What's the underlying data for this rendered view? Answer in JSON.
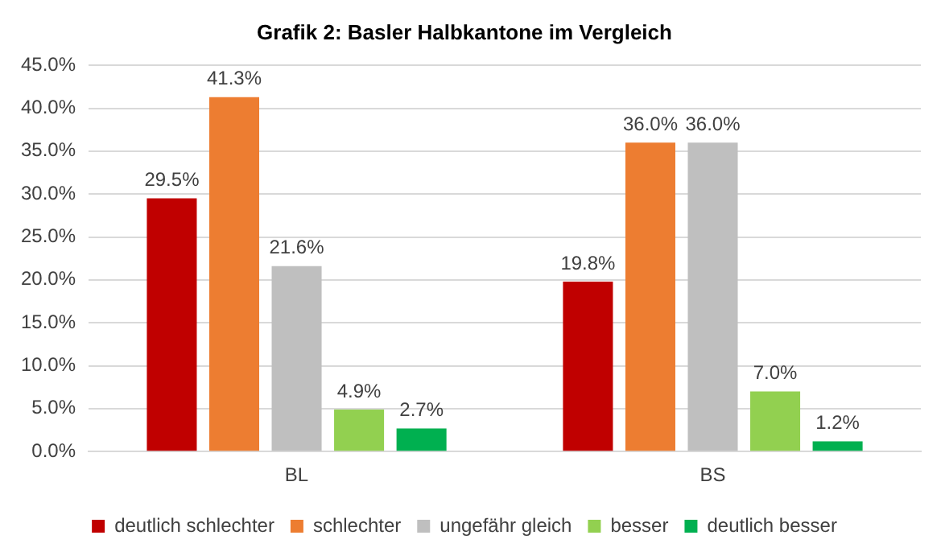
{
  "chart_data": {
    "type": "bar",
    "title": "Grafik 2: Basler Halbkantone im Vergleich",
    "categories": [
      "BL",
      "BS"
    ],
    "series": [
      {
        "name": "deutlich schlechter",
        "color": "#c00000",
        "values": [
          29.5,
          19.8
        ],
        "value_labels": [
          "29.5%",
          "19.8%"
        ]
      },
      {
        "name": "schlechter",
        "color": "#ed7d31",
        "values": [
          41.3,
          36.0
        ],
        "value_labels": [
          "41.3%",
          "36.0%"
        ]
      },
      {
        "name": "ungefähr gleich",
        "color": "#bfbfbf",
        "values": [
          21.6,
          36.0
        ],
        "value_labels": [
          "21.6%",
          "36.0%"
        ]
      },
      {
        "name": "besser",
        "color": "#92d050",
        "values": [
          4.9,
          7.0
        ],
        "value_labels": [
          "4.9%",
          "7.0%"
        ]
      },
      {
        "name": "deutlich besser",
        "color": "#00b050",
        "values": [
          2.7,
          1.2
        ],
        "value_labels": [
          "2.7%",
          "1.2%"
        ]
      }
    ],
    "ylim": [
      0,
      45
    ],
    "yticks": [
      {
        "value": 0,
        "label": "0.0%"
      },
      {
        "value": 5,
        "label": "5.0%"
      },
      {
        "value": 10,
        "label": "10.0%"
      },
      {
        "value": 15,
        "label": "15.0%"
      },
      {
        "value": 20,
        "label": "20.0%"
      },
      {
        "value": 25,
        "label": "25.0%"
      },
      {
        "value": 30,
        "label": "30.0%"
      },
      {
        "value": 35,
        "label": "35.0%"
      },
      {
        "value": 40,
        "label": "40.0%"
      },
      {
        "value": 45,
        "label": "45.0%"
      }
    ],
    "grid": "y",
    "legend": "bottom"
  }
}
